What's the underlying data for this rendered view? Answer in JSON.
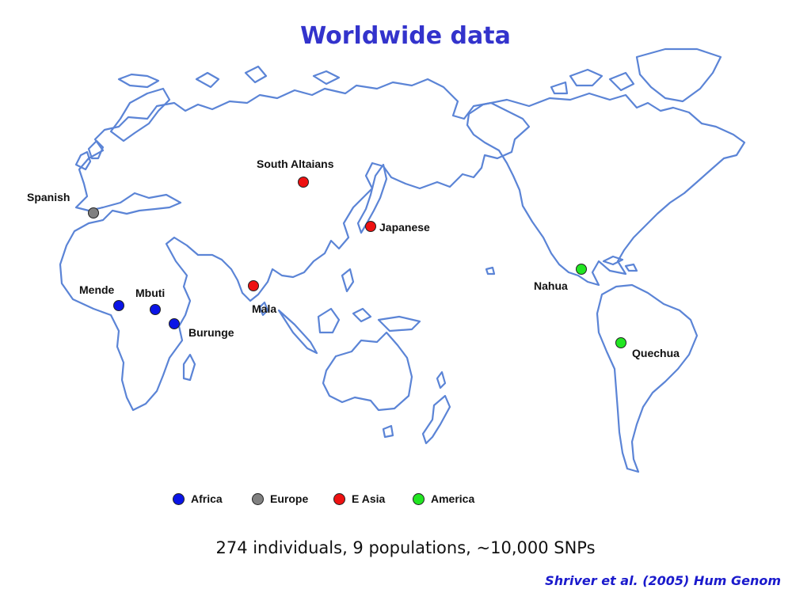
{
  "title": "Worldwide data",
  "populations": [
    {
      "name": "South Altaians",
      "group": "E Asia"
    },
    {
      "name": "Spanish",
      "group": "Europe"
    },
    {
      "name": "Japanese",
      "group": "E Asia"
    },
    {
      "name": "Mende",
      "group": "Africa"
    },
    {
      "name": "Mbuti",
      "group": "Africa"
    },
    {
      "name": "Burunge",
      "group": "Africa"
    },
    {
      "name": "Mala",
      "group": "E Asia"
    },
    {
      "name": "Nahua",
      "group": "America"
    },
    {
      "name": "Quechua",
      "group": "America"
    }
  ],
  "legend": [
    {
      "label": "Africa",
      "color": "#0a14e6"
    },
    {
      "label": "Europe",
      "color": "#808080"
    },
    {
      "label": "E Asia",
      "color": "#ee1111"
    },
    {
      "label": "America",
      "color": "#22e622"
    }
  ],
  "summary": "274 individuals, 9 populations, ~10,000 SNPs",
  "citation": "Shriver et al. (2005) Hum Genom"
}
